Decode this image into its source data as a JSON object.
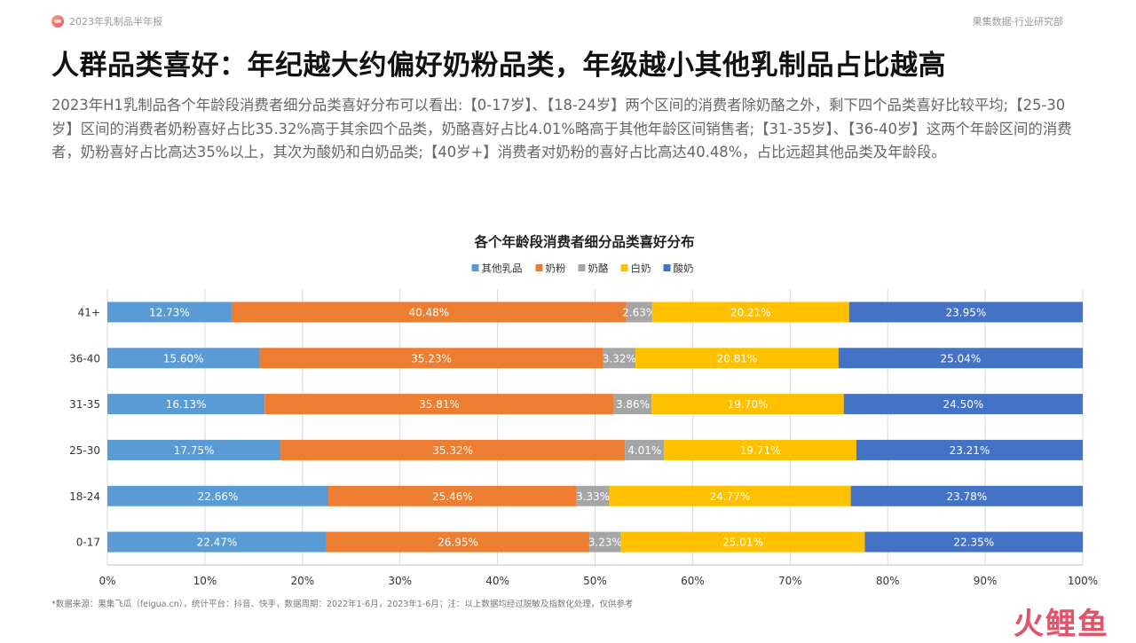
{
  "header": {
    "report_name": "2023年乳制品半年报",
    "org_name": "果集数据·行业研究部"
  },
  "page_title": "人群品类喜好：年纪越大约偏好奶粉品类，年级越小其他乳制品占比越高",
  "description": "2023年H1乳制品各个年龄段消费者细分品类喜好分布可以看出:【0-17岁】、【18-24岁】两个区间的消费者除奶酪之外，剩下四个品类喜好比较平均;【25-30岁】区间的消费者奶粉喜好占比35.32%高于其余四个品类，奶酪喜好占比4.01%略高于其他年龄区间销售者;【31-35岁】、【36-40岁】这两个年龄区间的消费者，奶粉喜好占比高达35%以上，其次为酸奶和白奶品类;【40岁+】消费者对奶粉的喜好占比高达40.48%，占比远超其他品类及年龄段。",
  "chart_data": {
    "type": "bar",
    "orientation": "horizontal",
    "stacked": "percent",
    "title": "各个年龄段消费者细分品类喜好分布",
    "categories": [
      "41+",
      "36-40",
      "31-35",
      "25-30",
      "18-24",
      "0-17"
    ],
    "series": [
      {
        "name": "其他乳品",
        "color": "#5b9bd5",
        "values": [
          12.73,
          15.6,
          16.13,
          17.75,
          22.66,
          22.47
        ]
      },
      {
        "name": "奶粉",
        "color": "#ed7d31",
        "values": [
          40.48,
          35.23,
          35.81,
          35.32,
          25.46,
          26.95
        ]
      },
      {
        "name": "奶酪",
        "color": "#a5a5a5",
        "values": [
          2.63,
          3.32,
          3.86,
          4.01,
          3.33,
          3.23
        ]
      },
      {
        "name": "白奶",
        "color": "#ffc000",
        "values": [
          20.21,
          20.81,
          19.7,
          19.71,
          24.77,
          25.01
        ]
      },
      {
        "name": "酸奶",
        "color": "#4472c4",
        "values": [
          23.95,
          25.04,
          24.5,
          23.21,
          23.78,
          22.35
        ]
      }
    ],
    "xlim": [
      0,
      100
    ],
    "xticks": [
      "0%",
      "10%",
      "20%",
      "30%",
      "40%",
      "50%",
      "60%",
      "70%",
      "80%",
      "90%",
      "100%"
    ],
    "grid": true,
    "legend_position": "top-center"
  },
  "footnote": "*数据来源：果集飞瓜（feigua.cn），统计平台：抖音、快手，数据周期：2022年1-6月，2023年1-6月；注：以上数据均经过脱敏及指数化处理，仅供参考",
  "watermark": "火鲤鱼"
}
